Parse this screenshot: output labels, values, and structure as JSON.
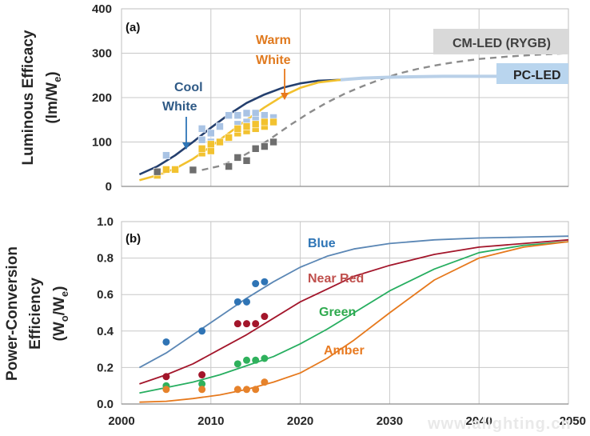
{
  "chart_data": [
    {
      "panel_label": "(a)",
      "type": "line",
      "ylabel_line1": "Luminous Efficacy",
      "ylabel_line2": "(lm/W",
      "ylabel_sub": "e",
      "ylabel_close": ")",
      "xlim": [
        2000,
        2050
      ],
      "ylim": [
        0,
        400
      ],
      "yticks": [
        "0",
        "100",
        "200",
        "300",
        "400"
      ],
      "grid": true,
      "colors": {
        "cool": "#243f6e",
        "warm": "#f2c12e",
        "cm": "#8c8c8c",
        "pc": "#b9d0e8",
        "cool_pts": "#a9c3e4",
        "warm_pts": "#f2c230",
        "cm_pts": "#6e6e6e"
      },
      "annotations": {
        "cool": [
          "Cool",
          "White"
        ],
        "warm": [
          "Warm",
          "White"
        ],
        "cm_box": "CM-LED (RYGB)",
        "pc_box": "PC-LED"
      },
      "series": [
        {
          "key": "cool",
          "name": "Cool White",
          "x": [
            2002,
            2004,
            2006,
            2008,
            2010,
            2012,
            2014,
            2016,
            2018,
            2020,
            2022,
            2024.5
          ],
          "y": [
            27,
            45,
            70,
            100,
            132,
            162,
            188,
            207,
            222,
            232,
            238,
            240
          ]
        },
        {
          "key": "warm",
          "name": "Warm White",
          "x": [
            2002,
            2004,
            2006,
            2008,
            2010,
            2012,
            2014,
            2016,
            2018,
            2020,
            2022,
            2024.5
          ],
          "y": [
            14,
            25,
            40,
            62,
            90,
            120,
            150,
            178,
            203,
            222,
            234,
            240
          ]
        },
        {
          "key": "cm",
          "name": "CM-LED (RYGB)",
          "x": [
            2009,
            2011,
            2013,
            2015,
            2017,
            2019,
            2021,
            2023,
            2025,
            2027,
            2029,
            2031,
            2033,
            2035,
            2037,
            2040,
            2043,
            2046,
            2050
          ],
          "y": [
            37,
            46,
            62,
            85,
            112,
            140,
            166,
            189,
            209,
            226,
            241,
            254,
            264,
            272,
            279,
            287,
            292,
            296,
            300
          ]
        },
        {
          "key": "pc",
          "name": "PC-LED",
          "x": [
            2024.5,
            2027,
            2030,
            2033,
            2036,
            2040,
            2045,
            2050
          ],
          "y": [
            240,
            244,
            246,
            247,
            248,
            248,
            248,
            248
          ]
        }
      ],
      "points": [
        {
          "key": "cool_pts",
          "x": [
            2005,
            2009,
            2009,
            2010,
            2010,
            2011,
            2012,
            2013,
            2013,
            2014,
            2014,
            2015,
            2015,
            2016,
            2016,
            2017
          ],
          "y": [
            70,
            130,
            105,
            120,
            100,
            135,
            160,
            160,
            140,
            165,
            145,
            165,
            150,
            160,
            140,
            155
          ]
        },
        {
          "key": "warm_pts",
          "x": [
            2004,
            2005,
            2006,
            2009,
            2009,
            2010,
            2010,
            2011,
            2012,
            2013,
            2013,
            2014,
            2014,
            2015,
            2015,
            2016,
            2016,
            2017
          ],
          "y": [
            25,
            38,
            38,
            75,
            85,
            80,
            95,
            100,
            110,
            120,
            130,
            125,
            135,
            130,
            140,
            135,
            145,
            145
          ]
        },
        {
          "key": "cm_pts",
          "x": [
            2004,
            2008,
            2012,
            2013,
            2014,
            2015,
            2016,
            2017
          ],
          "y": [
            33,
            37,
            45,
            65,
            58,
            85,
            90,
            100
          ]
        }
      ]
    },
    {
      "panel_label": "(b)",
      "type": "line",
      "ylabel_line1": "Power-Conversion",
      "ylabel_line2": "Efficiency",
      "ylabel_line3": "(W",
      "ylabel_sub1": "o",
      "ylabel_mid": "/W",
      "ylabel_sub2": "e",
      "ylabel_close": ")",
      "xlim": [
        2000,
        2050
      ],
      "ylim": [
        0,
        1.0
      ],
      "xticks": [
        "2000",
        "2010",
        "2020",
        "2030",
        "2040",
        "2050"
      ],
      "yticks": [
        "0.0",
        "0.2",
        "0.4",
        "0.6",
        "0.8",
        "1.0"
      ],
      "grid": true,
      "colors": {
        "blue": "#5b87b5",
        "red": "#a3162b",
        "green": "#27ae60",
        "amber": "#e6791d",
        "blue_pts": "#2f74b5",
        "red_pts": "#a3162b",
        "green_pts": "#2fb15c",
        "amber_pts": "#e6822b",
        "blue_lbl": "#2e75b6",
        "red_lbl": "#c0504d",
        "green_lbl": "#2faa4f",
        "amber_lbl": "#e87b22"
      },
      "series": [
        {
          "key": "blue",
          "name": "Blue",
          "x": [
            2002,
            2005,
            2008,
            2011,
            2014,
            2017,
            2020,
            2023,
            2026,
            2030,
            2035,
            2040,
            2045,
            2050
          ],
          "y": [
            0.2,
            0.28,
            0.38,
            0.48,
            0.58,
            0.67,
            0.75,
            0.81,
            0.85,
            0.88,
            0.9,
            0.91,
            0.915,
            0.92
          ]
        },
        {
          "key": "red",
          "name": "Near Red",
          "x": [
            2002,
            2005,
            2008,
            2011,
            2014,
            2017,
            2020,
            2023,
            2026,
            2030,
            2035,
            2040,
            2045,
            2050
          ],
          "y": [
            0.11,
            0.16,
            0.22,
            0.3,
            0.38,
            0.47,
            0.56,
            0.63,
            0.7,
            0.76,
            0.82,
            0.86,
            0.88,
            0.9
          ]
        },
        {
          "key": "green",
          "name": "Green",
          "x": [
            2002,
            2005,
            2008,
            2011,
            2014,
            2017,
            2020,
            2023,
            2026,
            2030,
            2035,
            2040,
            2045,
            2050
          ],
          "y": [
            0.06,
            0.09,
            0.12,
            0.16,
            0.21,
            0.26,
            0.33,
            0.41,
            0.5,
            0.62,
            0.74,
            0.83,
            0.87,
            0.89
          ]
        },
        {
          "key": "amber",
          "name": "Amber",
          "x": [
            2002,
            2005,
            2008,
            2011,
            2014,
            2017,
            2020,
            2023,
            2026,
            2030,
            2035,
            2040,
            2045,
            2050
          ],
          "y": [
            0.01,
            0.015,
            0.03,
            0.05,
            0.08,
            0.12,
            0.17,
            0.25,
            0.35,
            0.5,
            0.68,
            0.8,
            0.86,
            0.89
          ]
        }
      ],
      "points": [
        {
          "key": "blue_pts",
          "x": [
            2005,
            2009,
            2013,
            2014,
            2015,
            2016
          ],
          "y": [
            0.34,
            0.4,
            0.56,
            0.56,
            0.66,
            0.67
          ]
        },
        {
          "key": "red_pts",
          "x": [
            2005,
            2009,
            2013,
            2014,
            2015,
            2016
          ],
          "y": [
            0.15,
            0.16,
            0.44,
            0.44,
            0.44,
            0.48
          ]
        },
        {
          "key": "green_pts",
          "x": [
            2005,
            2009,
            2013,
            2014,
            2015,
            2016
          ],
          "y": [
            0.1,
            0.11,
            0.22,
            0.24,
            0.24,
            0.25
          ]
        },
        {
          "key": "amber_pts",
          "x": [
            2005,
            2009,
            2013,
            2014,
            2015,
            2016
          ],
          "y": [
            0.08,
            0.08,
            0.08,
            0.08,
            0.08,
            0.12
          ]
        }
      ],
      "labels": [
        {
          "key": "blue_lbl",
          "text": "Blue"
        },
        {
          "key": "red_lbl",
          "text": "Near Red"
        },
        {
          "key": "green_lbl",
          "text": "Green"
        },
        {
          "key": "amber_lbl",
          "text": "Amber"
        }
      ]
    }
  ],
  "watermark": "www.alighting.cn"
}
